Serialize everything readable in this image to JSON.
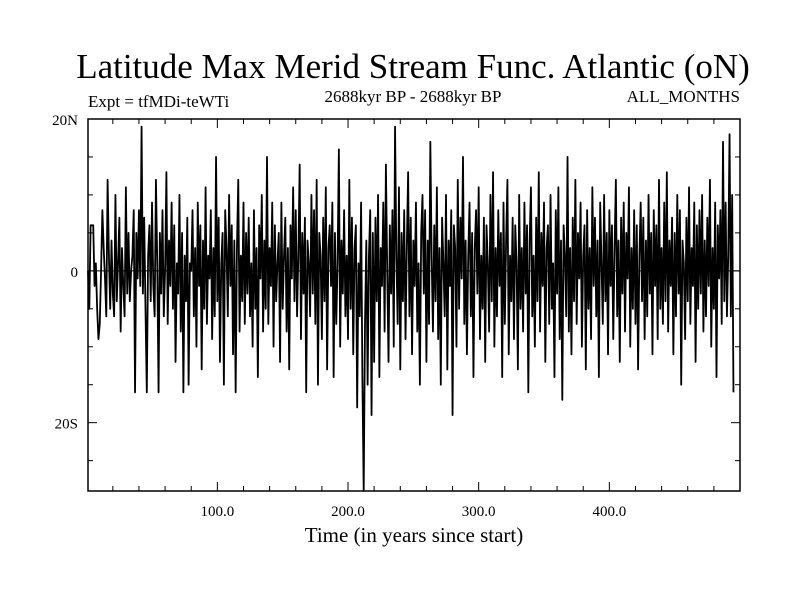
{
  "chart_data": {
    "type": "line",
    "title": "Latitude Max Merid Stream Func. Atlantic (oN)",
    "subtitle_left": "Expt = tfMDi-teWTi",
    "subtitle_center": "2688kyr BP - 2688kyr BP",
    "subtitle_right": "ALL_MONTHS",
    "xlabel": "Time (in years since start)",
    "ylabel": "",
    "xlim": [
      1,
      500
    ],
    "ylim": [
      -29,
      20
    ],
    "x_ticks": [
      100,
      200,
      300,
      400
    ],
    "x_tick_labels": [
      "100.0",
      "200.0",
      "300.0",
      "400.0"
    ],
    "y_ticks": [
      20,
      0,
      -20
    ],
    "y_tick_labels": [
      "20N",
      "0",
      "20S"
    ],
    "grid": false,
    "series": [
      {
        "x_start": 1,
        "x_step": 1,
        "values": [
          0,
          -5,
          6,
          6,
          6,
          -2,
          1,
          -5,
          -9,
          -7,
          0,
          8,
          3,
          -1,
          -6,
          12,
          2,
          -5,
          4,
          -3,
          -6,
          10,
          -4,
          1,
          7,
          -8,
          3,
          -2,
          -6,
          11,
          -3,
          5,
          -4,
          0,
          2,
          8,
          -16,
          5,
          -1,
          8,
          -2,
          19,
          -3,
          7,
          -5,
          -16,
          2,
          6,
          -4,
          9,
          -2,
          -6,
          12,
          1,
          -16,
          5,
          -3,
          8,
          -6,
          0,
          13,
          -7,
          4,
          -2,
          9,
          -5,
          6,
          -12,
          1,
          -3,
          10,
          -8,
          5,
          -16,
          2,
          -4,
          7,
          -15,
          1,
          0,
          8,
          -6,
          3,
          -10,
          9,
          -2,
          6,
          -13,
          4,
          -5,
          11,
          -7,
          2,
          -1,
          8,
          -9,
          3,
          -6,
          15,
          -4,
          7,
          -12,
          1,
          5,
          -15,
          8,
          3,
          -6,
          10,
          -2,
          6,
          -11,
          4,
          -16,
          3,
          12,
          -8,
          2,
          -4,
          9,
          -7,
          5,
          -3,
          7,
          -6,
          1,
          -10,
          8,
          -5,
          3,
          -14,
          6,
          -1,
          10,
          -8,
          4,
          -5,
          15,
          -7,
          3,
          -2,
          9,
          -10,
          6,
          -4,
          1,
          5,
          -12,
          9,
          -5,
          2,
          7,
          -8,
          3,
          -13,
          6,
          -1,
          11,
          -4,
          8,
          -6,
          2,
          14,
          -9,
          5,
          -3,
          7,
          -16,
          4,
          1,
          -6,
          10,
          -3,
          8,
          -7,
          12,
          -15,
          5,
          2,
          -9,
          7,
          -4,
          11,
          -13,
          3,
          6,
          -2,
          9,
          -14,
          5,
          -7,
          1,
          16,
          -10,
          4,
          -3,
          8,
          -6,
          2,
          -9,
          12,
          -5,
          7,
          -11,
          3,
          6,
          -18,
          1,
          -6,
          9,
          -14,
          -29,
          -7,
          4,
          -15,
          2,
          8,
          -19,
          5,
          -12,
          7,
          -4,
          10,
          -14,
          3,
          -2,
          9,
          -8,
          14,
          0,
          -12,
          6,
          -3,
          8,
          -10,
          19,
          2,
          -7,
          11,
          -13,
          5,
          -4,
          8,
          -9,
          3,
          13,
          -6,
          7,
          -11,
          4,
          -2,
          9,
          -8,
          1,
          -15,
          5,
          10,
          -3,
          8,
          -12,
          4,
          -7,
          17,
          2,
          -8,
          6,
          -4,
          11,
          -9,
          3,
          -15,
          7,
          1,
          -6,
          10,
          -13,
          4,
          -2,
          8,
          -19,
          6,
          3,
          -10,
          12,
          -5,
          7,
          -1,
          15,
          -7,
          4,
          -11,
          2,
          9,
          -6,
          5,
          -14,
          3,
          8,
          -3,
          11,
          -9,
          2,
          -5,
          7,
          -12,
          6,
          1,
          -8,
          10,
          -4,
          13,
          -10,
          3,
          -6,
          8,
          -2,
          5,
          -14,
          9,
          -7,
          4,
          12,
          -11,
          2,
          -4,
          7,
          -9,
          6,
          1,
          -13,
          10,
          -5,
          3,
          -8,
          9,
          -3,
          6,
          -16,
          4,
          11,
          -6,
          2,
          -10,
          7,
          -4,
          13,
          -8,
          5,
          -2,
          9,
          -12,
          3,
          6,
          -7,
          10,
          -5,
          1,
          -14,
          8,
          -3,
          11,
          -9,
          4,
          -17,
          6,
          2,
          -6,
          15,
          -8,
          3,
          -11,
          7,
          -4,
          12,
          -7,
          5,
          -1,
          9,
          -10,
          2,
          6,
          -13,
          8,
          -5,
          3,
          -9,
          11,
          -2,
          7,
          -6,
          4,
          -14,
          9,
          1,
          -7,
          10,
          -4,
          5,
          -11,
          8,
          -2,
          6,
          -9,
          3,
          12,
          -6,
          4,
          -12,
          7,
          -3,
          9,
          -8,
          5,
          -1,
          11,
          -10,
          3,
          -5,
          8,
          -7,
          6,
          -13,
          2,
          9,
          -4,
          7,
          -9,
          4,
          -6,
          10,
          -3,
          5,
          -11,
          8,
          -2,
          6,
          -9,
          12,
          -5,
          3,
          -7,
          9,
          -4,
          13,
          -8,
          4,
          -2,
          7,
          -11,
          5,
          -6,
          10,
          -3,
          8,
          -15,
          4,
          1,
          -9,
          7,
          -4,
          11,
          -7,
          3,
          -2,
          9,
          -12,
          6,
          -5,
          8,
          -3,
          10,
          -8,
          4,
          -6,
          7,
          -2,
          12,
          -10,
          3,
          -5,
          9,
          -14,
          6,
          -1,
          8,
          -7,
          17,
          -4,
          9,
          -6,
          2,
          18,
          -6,
          10,
          -16
        ]
      }
    ]
  }
}
